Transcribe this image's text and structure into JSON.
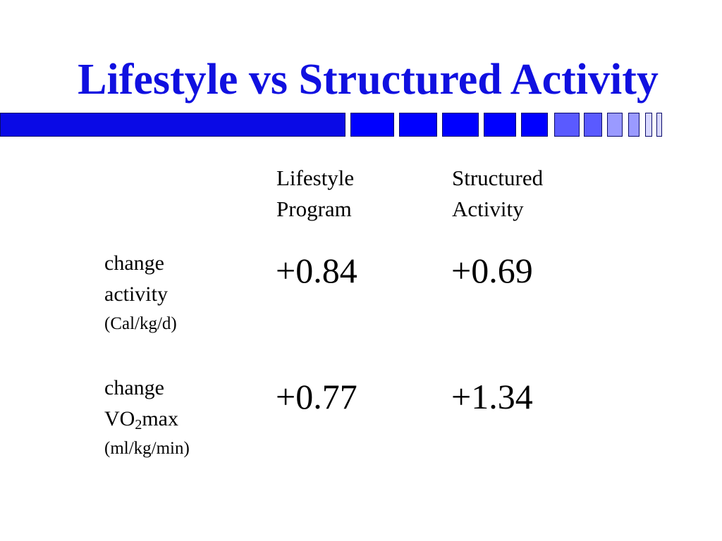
{
  "slide": {
    "title": "Lifestyle vs Structured Activity",
    "title_color": "#1010e0",
    "band_colors": [
      "#0a0ae6",
      "#0000ff",
      "#5a5aff",
      "#9a9aff",
      "#d8d8ff"
    ]
  },
  "table": {
    "columns": [
      {
        "line1": "Lifestyle",
        "line2": "Program"
      },
      {
        "line1": "Structured",
        "line2": "Activity"
      }
    ],
    "rows": [
      {
        "label_line1": "change",
        "label_line2": "activity",
        "label_sub": "",
        "label_after": "",
        "unit": "(Cal/kg/d)",
        "values": [
          "+0.84",
          "+0.69"
        ]
      },
      {
        "label_line1": "change",
        "label_line2": "VO",
        "label_sub": "2",
        "label_after": "max",
        "unit": "(ml/kg/min)",
        "values": [
          "+0.77",
          "+1.34"
        ]
      }
    ]
  }
}
